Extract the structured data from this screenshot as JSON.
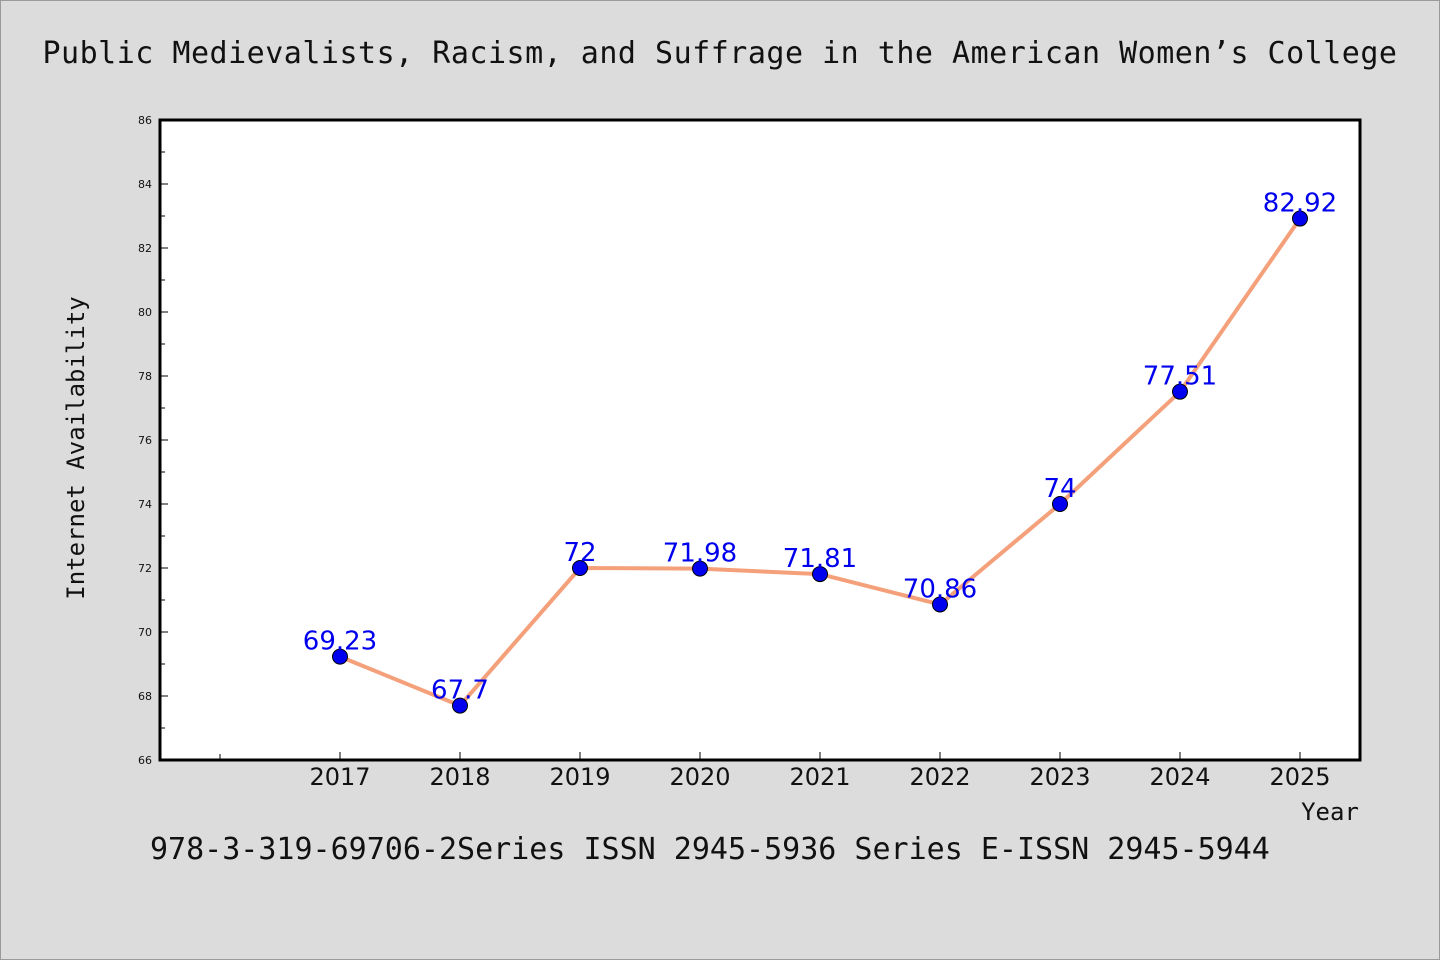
{
  "chart_data": {
    "type": "line",
    "title": "Public Medievalists, Racism, and Suffrage in the American Women’s College",
    "footer": "978-3-319-69706-2Series ISSN 2945-5936 Series E-ISSN 2945-5944",
    "xlabel": "Year",
    "ylabel": "Internet Availability",
    "x": [
      "2017",
      "2018",
      "2019",
      "2020",
      "2021",
      "2022",
      "2023",
      "2024",
      "2025"
    ],
    "series": [
      {
        "values": [
          69.23,
          67.7,
          72,
          71.98,
          71.81,
          70.86,
          74,
          77.51,
          82.92
        ],
        "labels": [
          "69.23",
          "67.7",
          "72",
          "71.98",
          "71.81",
          "70.86",
          "74",
          "77.51",
          "82.92"
        ]
      }
    ],
    "ylim": [
      66,
      86
    ],
    "yticks": [
      "66",
      "68",
      "70",
      "72",
      "74",
      "76",
      "78",
      "80",
      "82",
      "84",
      "86"
    ],
    "grid": false,
    "colors": {
      "line": "#f4a07a",
      "marker": "#0000ee",
      "label": "#0000ee",
      "background": "#dcdcdc",
      "plot_bg": "#ffffff"
    }
  }
}
